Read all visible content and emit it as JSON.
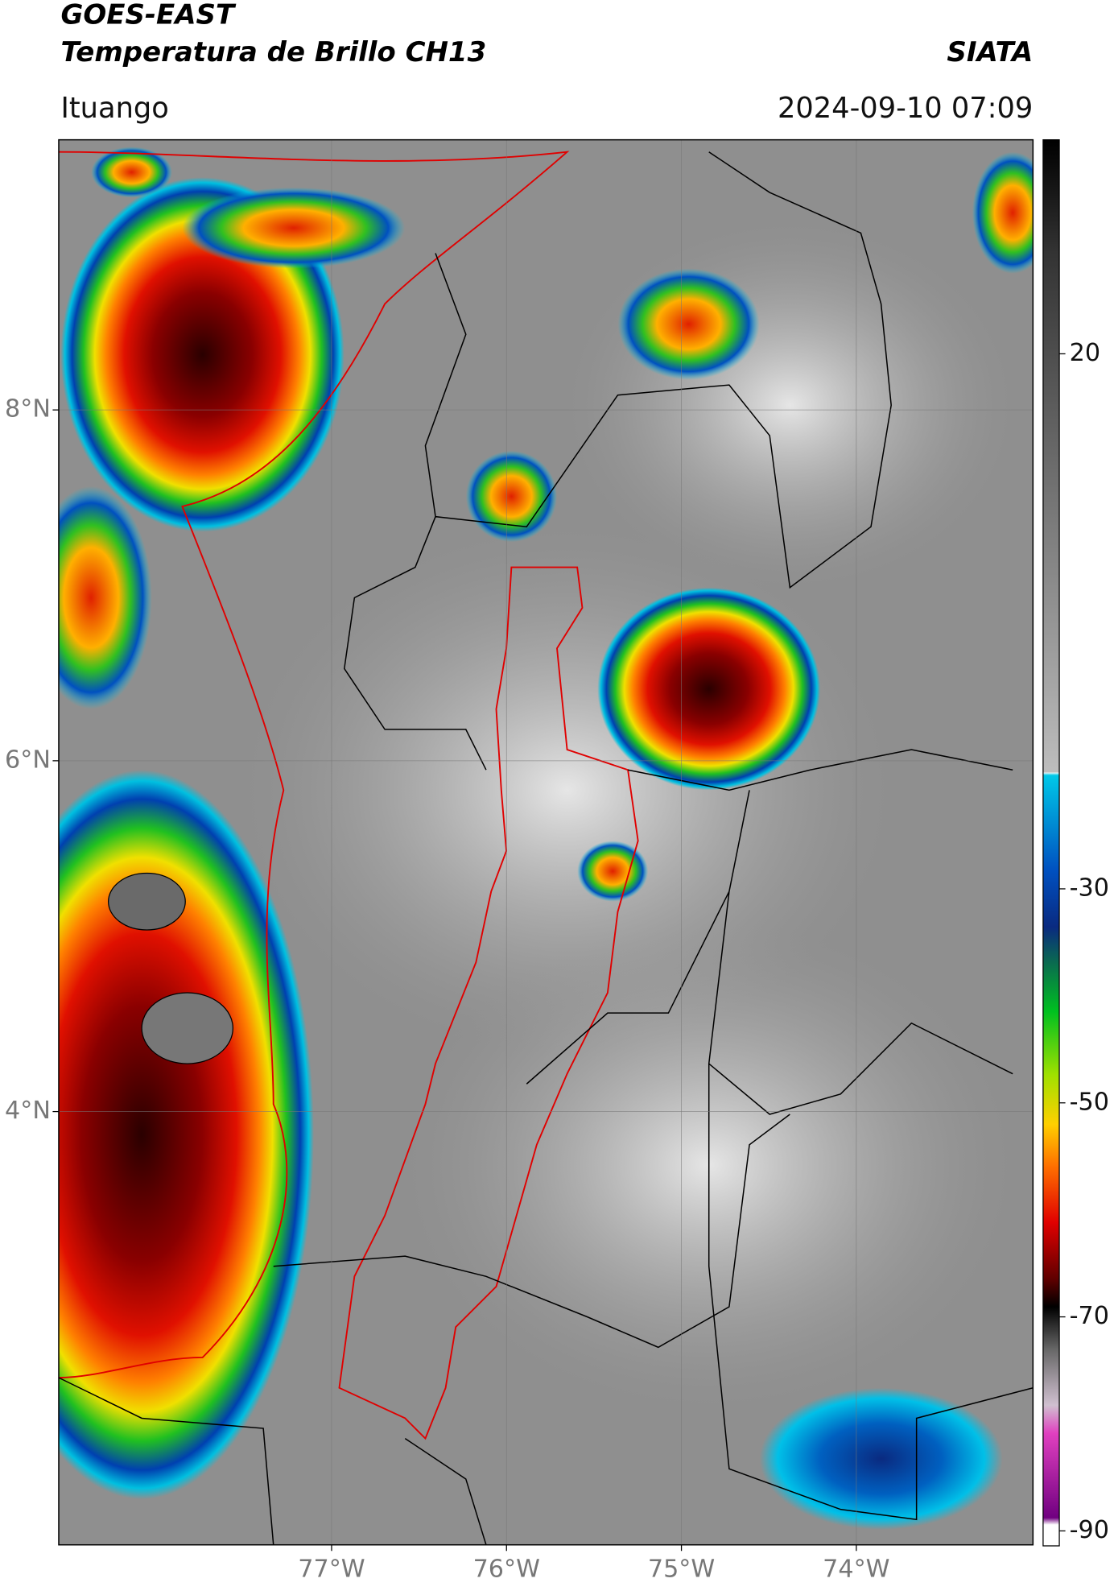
{
  "header": {
    "title": "GOES-EAST",
    "subtitle": "Temperatura de Brillo CH13",
    "agency": "SIATA",
    "location": "Ituango",
    "datetime": "2024-09-10 07:09"
  },
  "map": {
    "lonlim": [
      -78.56,
      -72.99
    ],
    "latlim": [
      1.53,
      9.54
    ],
    "xticks": [
      {
        "value": -77,
        "label": "77°W"
      },
      {
        "value": -76,
        "label": "76°W"
      },
      {
        "value": -75,
        "label": "75°W"
      },
      {
        "value": -74,
        "label": "74°W"
      }
    ],
    "yticks": [
      {
        "value": 8,
        "label": "8°N"
      },
      {
        "value": 6,
        "label": "6°N"
      },
      {
        "value": 4,
        "label": "4°N"
      }
    ],
    "grid": true
  },
  "colorbar": {
    "lim": [
      -91.4,
      40
    ],
    "ticks": [
      20,
      -30,
      -50,
      -70,
      -90
    ]
  }
}
